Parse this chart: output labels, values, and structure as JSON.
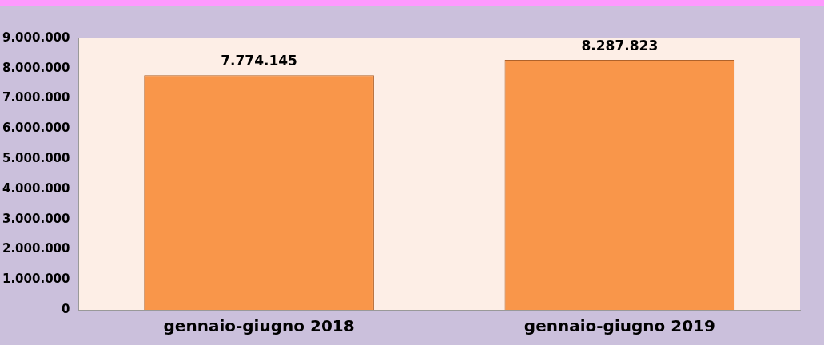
{
  "chart_data": {
    "type": "bar",
    "categories": [
      "gennaio-giugno 2018",
      "gennaio-giugno 2019"
    ],
    "values": [
      7774145,
      8287823
    ],
    "value_labels": [
      "7.774.145",
      "8.287.823"
    ],
    "color": "#f9964a",
    "ylim": [
      0,
      9000000
    ],
    "yticks": [
      {
        "value": 0,
        "label": "0"
      },
      {
        "value": 1000000,
        "label": "1.000.000"
      },
      {
        "value": 2000000,
        "label": "2.000.000"
      },
      {
        "value": 3000000,
        "label": "3.000.000"
      },
      {
        "value": 4000000,
        "label": "4.000.000"
      },
      {
        "value": 5000000,
        "label": "5.000.000"
      },
      {
        "value": 6000000,
        "label": "6.000.000"
      },
      {
        "value": 7000000,
        "label": "7.000.000"
      },
      {
        "value": 8000000,
        "label": "8.000.000"
      },
      {
        "value": 9000000,
        "label": "9.000.000"
      }
    ],
    "grid": false,
    "legend": false
  }
}
